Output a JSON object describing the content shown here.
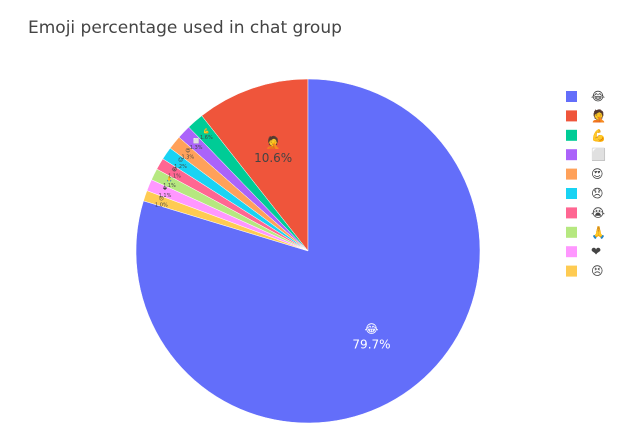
{
  "chart_data": {
    "type": "pie",
    "title": "Emoji percentage used in chat group",
    "labels": [
      "😂",
      "🤦",
      "💪",
      "⬜",
      "😍",
      "😞",
      "😭",
      "🙏",
      "❤",
      "😣"
    ],
    "values": [
      79.7,
      10.6,
      1.6,
      1.3,
      1.3,
      1.2,
      1.1,
      1.1,
      1.1,
      1.0
    ],
    "value_labels": [
      "79.7%",
      "10.6%",
      "1.6%",
      "1.3%",
      "1.3%",
      "1.2%",
      "1.1%",
      "1.1%",
      "1.1%",
      "1.0%"
    ],
    "colors": [
      "#636efa",
      "#ef553b",
      "#00cc96",
      "#ab63fa",
      "#ffa15a",
      "#19d3f3",
      "#ff6692",
      "#b6e880",
      "#ff97ff",
      "#fecb52"
    ],
    "legend": "right"
  }
}
